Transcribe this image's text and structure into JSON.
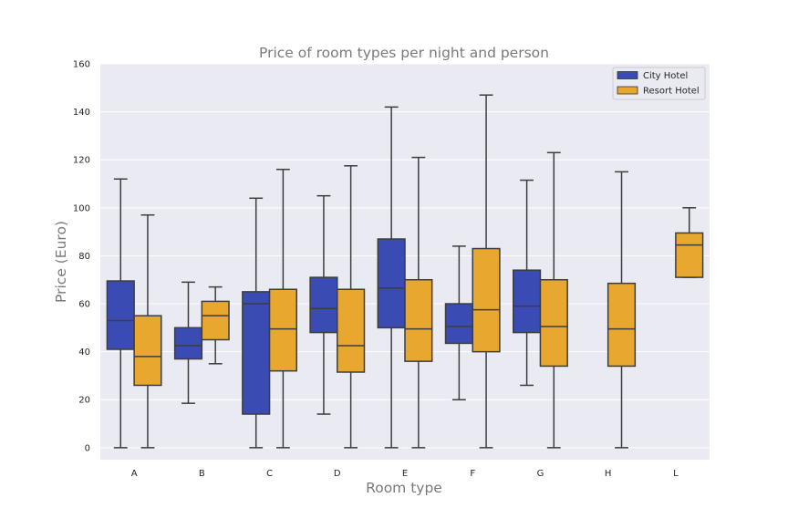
{
  "chart_data": {
    "type": "box",
    "title": "Price of room types per night and person",
    "xlabel": "Room type",
    "ylabel": "Price (Euro)",
    "ylim": [
      -5,
      160
    ],
    "yticks": [
      0,
      20,
      40,
      60,
      80,
      100,
      120,
      140,
      160
    ],
    "grid": true,
    "legend_position": "top-right",
    "categories": [
      "A",
      "B",
      "C",
      "D",
      "E",
      "F",
      "G",
      "H",
      "L"
    ],
    "series": [
      {
        "name": "City Hotel",
        "color": "#3a4cb4",
        "boxes": [
          {
            "category": "A",
            "min": 0,
            "q1": 41,
            "median": 53,
            "q3": 69.5,
            "max": 112
          },
          {
            "category": "B",
            "min": 18.5,
            "q1": 37,
            "median": 42.5,
            "q3": 50,
            "max": 69
          },
          {
            "category": "C",
            "min": 0,
            "q1": 14,
            "median": 60,
            "q3": 65,
            "max": 104
          },
          {
            "category": "D",
            "min": 14,
            "q1": 48,
            "median": 58,
            "q3": 71,
            "max": 105
          },
          {
            "category": "E",
            "min": 0,
            "q1": 50,
            "median": 66.5,
            "q3": 87,
            "max": 142
          },
          {
            "category": "F",
            "min": 20,
            "q1": 43.5,
            "median": 50.5,
            "q3": 60,
            "max": 84
          },
          {
            "category": "G",
            "min": 26,
            "q1": 48,
            "median": 59,
            "q3": 74,
            "max": 111.5
          }
        ]
      },
      {
        "name": "Resort Hotel",
        "color": "#e8a830",
        "boxes": [
          {
            "category": "A",
            "min": 0,
            "q1": 26,
            "median": 38,
            "q3": 55,
            "max": 97
          },
          {
            "category": "B",
            "min": 35,
            "q1": 45,
            "median": 55,
            "q3": 61,
            "max": 67
          },
          {
            "category": "C",
            "min": 0,
            "q1": 32,
            "median": 49.5,
            "q3": 66,
            "max": 116
          },
          {
            "category": "D",
            "min": 0,
            "q1": 31.5,
            "median": 42.5,
            "q3": 66,
            "max": 117.5
          },
          {
            "category": "E",
            "min": 0,
            "q1": 36,
            "median": 49.5,
            "q3": 70,
            "max": 121
          },
          {
            "category": "F",
            "min": 0,
            "q1": 40,
            "median": 57.5,
            "q3": 83,
            "max": 147
          },
          {
            "category": "G",
            "min": 0,
            "q1": 34,
            "median": 50.5,
            "q3": 70,
            "max": 123
          },
          {
            "category": "H",
            "min": 0,
            "q1": 34,
            "median": 49.5,
            "q3": 68.5,
            "max": 115
          },
          {
            "category": "L",
            "min": 71,
            "q1": 71,
            "median": 84.5,
            "q3": 89.5,
            "max": 100
          }
        ]
      }
    ]
  }
}
